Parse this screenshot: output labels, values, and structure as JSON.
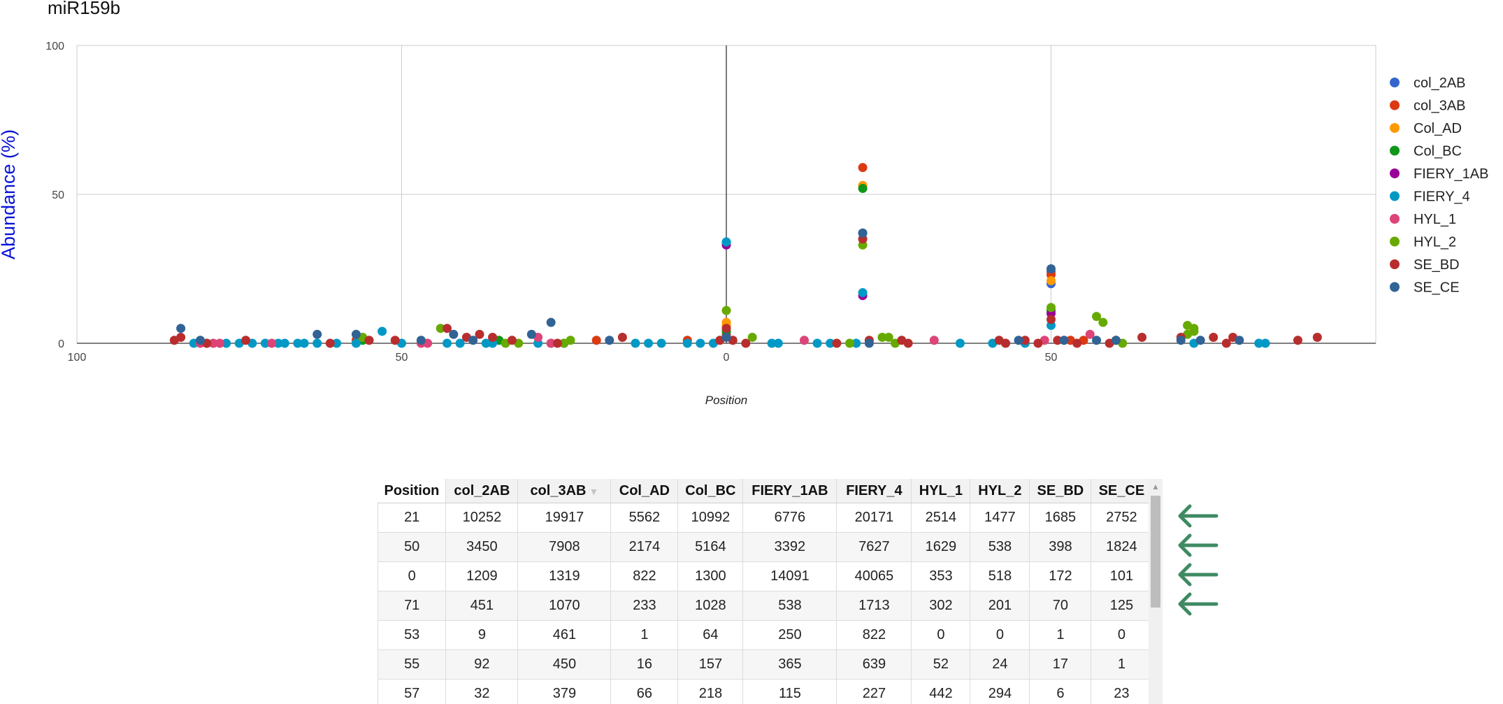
{
  "chart_data": {
    "type": "scatter",
    "title": "miR159b",
    "xlabel": "Position",
    "ylabel": "Abundance (%)",
    "xlim": [
      -100,
      100
    ],
    "ylim": [
      0,
      100
    ],
    "x_ticks": [
      "100",
      "50",
      "0",
      "50"
    ],
    "y_ticks": [
      "100",
      "50",
      "0"
    ],
    "grid": true,
    "legend_position": "right",
    "series": [
      {
        "name": "col_2AB",
        "color": "#3366cc",
        "points": [
          [
            0,
            34
          ],
          [
            21,
            37
          ],
          [
            50,
            24
          ],
          [
            50,
            20
          ]
        ]
      },
      {
        "name": "col_3AB",
        "color": "#dc3912",
        "points": [
          [
            21,
            59
          ],
          [
            50,
            23
          ],
          [
            0,
            3
          ],
          [
            -6,
            1
          ],
          [
            -20,
            1
          ],
          [
            -57,
            1
          ],
          [
            53,
            1
          ],
          [
            55,
            1
          ]
        ]
      },
      {
        "name": "Col_AD",
        "color": "#ff9900",
        "points": [
          [
            21,
            53
          ],
          [
            50,
            21
          ],
          [
            0,
            7
          ],
          [
            0,
            6
          ]
        ]
      },
      {
        "name": "Col_BC",
        "color": "#109618",
        "points": [
          [
            21,
            52
          ],
          [
            0,
            4
          ],
          [
            50,
            11
          ],
          [
            -56,
            1
          ],
          [
            -35,
            1
          ]
        ]
      },
      {
        "name": "FIERY_1AB",
        "color": "#990099",
        "points": [
          [
            0,
            33
          ],
          [
            21,
            16
          ],
          [
            50,
            10
          ]
        ]
      },
      {
        "name": "FIERY_4",
        "color": "#0099c6",
        "points": [
          [
            0,
            34
          ],
          [
            21,
            17
          ],
          [
            50,
            6
          ],
          [
            -53,
            4
          ],
          [
            -82,
            0
          ],
          [
            -80,
            0
          ],
          [
            -77,
            0
          ],
          [
            -75,
            0
          ],
          [
            -73,
            0
          ],
          [
            -71,
            0
          ],
          [
            -69,
            0
          ],
          [
            -68,
            0
          ],
          [
            -66,
            0
          ],
          [
            -65,
            0
          ],
          [
            -63,
            0
          ],
          [
            -60,
            0
          ],
          [
            -57,
            0
          ],
          [
            -50,
            0
          ],
          [
            -43,
            0
          ],
          [
            -41,
            0
          ],
          [
            -37,
            0
          ],
          [
            -36,
            0
          ],
          [
            -29,
            0
          ],
          [
            -27,
            0
          ],
          [
            -25,
            0
          ],
          [
            -14,
            0
          ],
          [
            -12,
            0
          ],
          [
            -10,
            0
          ],
          [
            -6,
            0
          ],
          [
            -4,
            0
          ],
          [
            -2,
            0
          ],
          [
            7,
            0
          ],
          [
            8,
            0
          ],
          [
            14,
            0
          ],
          [
            16,
            0
          ],
          [
            20,
            0
          ],
          [
            36,
            0
          ],
          [
            41,
            0
          ],
          [
            43,
            0
          ],
          [
            46,
            0
          ],
          [
            72,
            0
          ],
          [
            82,
            0
          ],
          [
            83,
            0
          ]
        ]
      },
      {
        "name": "HYL_1",
        "color": "#dd4477",
        "points": [
          [
            -81,
            0
          ],
          [
            -79,
            0
          ],
          [
            -78,
            0
          ],
          [
            -70,
            0
          ],
          [
            -47,
            0
          ],
          [
            -46,
            0
          ],
          [
            -29,
            2
          ],
          [
            -27,
            0
          ],
          [
            12,
            1
          ],
          [
            32,
            1
          ],
          [
            49,
            1
          ],
          [
            56,
            3
          ]
        ]
      },
      {
        "name": "HYL_2",
        "color": "#66aa00",
        "points": [
          [
            21,
            33
          ],
          [
            0,
            11
          ],
          [
            4,
            2
          ],
          [
            -44,
            5
          ],
          [
            -56,
            2
          ],
          [
            -34,
            0
          ],
          [
            -32,
            0
          ],
          [
            -25,
            0
          ],
          [
            -24,
            1
          ],
          [
            19,
            0
          ],
          [
            24,
            2
          ],
          [
            25,
            2
          ],
          [
            26,
            0
          ],
          [
            50,
            12
          ],
          [
            57,
            9
          ],
          [
            58,
            7
          ],
          [
            71,
            6
          ],
          [
            71,
            3
          ],
          [
            72,
            5
          ],
          [
            72,
            4
          ],
          [
            61,
            0
          ]
        ]
      },
      {
        "name": "SE_BD",
        "color": "#b82e2e",
        "points": [
          [
            21,
            35
          ],
          [
            50,
            8
          ],
          [
            0,
            5
          ],
          [
            -1,
            1
          ],
          [
            1,
            1
          ],
          [
            3,
            0
          ],
          [
            -85,
            1
          ],
          [
            -84,
            2
          ],
          [
            -80,
            0
          ],
          [
            -74,
            1
          ],
          [
            -61,
            0
          ],
          [
            -55,
            1
          ],
          [
            -51,
            1
          ],
          [
            -43,
            5
          ],
          [
            -40,
            2
          ],
          [
            -38,
            3
          ],
          [
            -36,
            2
          ],
          [
            -33,
            1
          ],
          [
            -26,
            0
          ],
          [
            -16,
            2
          ],
          [
            17,
            0
          ],
          [
            22,
            1
          ],
          [
            27,
            1
          ],
          [
            28,
            0
          ],
          [
            42,
            1
          ],
          [
            43,
            0
          ],
          [
            46,
            1
          ],
          [
            48,
            0
          ],
          [
            51,
            1
          ],
          [
            54,
            0
          ],
          [
            59,
            0
          ],
          [
            60,
            1
          ],
          [
            64,
            2
          ],
          [
            70,
            2
          ],
          [
            75,
            2
          ],
          [
            77,
            0
          ],
          [
            78,
            2
          ],
          [
            88,
            1
          ],
          [
            91,
            2
          ]
        ]
      },
      {
        "name": "SE_CE",
        "color": "#316395",
        "points": [
          [
            50,
            25
          ],
          [
            21,
            37
          ],
          [
            0,
            2
          ],
          [
            -84,
            5
          ],
          [
            -81,
            1
          ],
          [
            -63,
            3
          ],
          [
            -57,
            3
          ],
          [
            -47,
            1
          ],
          [
            -42,
            3
          ],
          [
            -39,
            1
          ],
          [
            -27,
            7
          ],
          [
            -30,
            3
          ],
          [
            -18,
            1
          ],
          [
            22,
            0
          ],
          [
            45,
            1
          ],
          [
            52,
            1
          ],
          [
            57,
            1
          ],
          [
            60,
            1
          ],
          [
            70,
            1
          ],
          [
            73,
            1
          ],
          [
            79,
            1
          ]
        ]
      }
    ]
  },
  "table": {
    "columns": [
      "Position",
      "col_2AB",
      "col_3AB",
      "Col_AD",
      "Col_BC",
      "FIERY_1AB",
      "FIERY_4",
      "HYL_1",
      "HYL_2",
      "SE_BD",
      "SE_CE"
    ],
    "sort_indicator": "▼",
    "rows": [
      [
        "21",
        "10252",
        "19917",
        "5562",
        "10992",
        "6776",
        "20171",
        "2514",
        "1477",
        "1685",
        "2752"
      ],
      [
        "50",
        "3450",
        "7908",
        "2174",
        "5164",
        "3392",
        "7627",
        "1629",
        "538",
        "398",
        "1824"
      ],
      [
        "0",
        "1209",
        "1319",
        "822",
        "1300",
        "14091",
        "40065",
        "353",
        "518",
        "172",
        "101"
      ],
      [
        "71",
        "451",
        "1070",
        "233",
        "1028",
        "538",
        "1713",
        "302",
        "201",
        "70",
        "125"
      ],
      [
        "53",
        "9",
        "461",
        "1",
        "64",
        "250",
        "822",
        "0",
        "0",
        "1",
        "0"
      ],
      [
        "55",
        "92",
        "450",
        "16",
        "157",
        "365",
        "639",
        "52",
        "24",
        "17",
        "1"
      ],
      [
        "57",
        "32",
        "379",
        "66",
        "218",
        "115",
        "227",
        "442",
        "294",
        "6",
        "23"
      ]
    ]
  },
  "annotations": {
    "arrow_color": "#3f8a63",
    "arrow_rows": [
      0,
      1,
      2,
      3
    ]
  }
}
